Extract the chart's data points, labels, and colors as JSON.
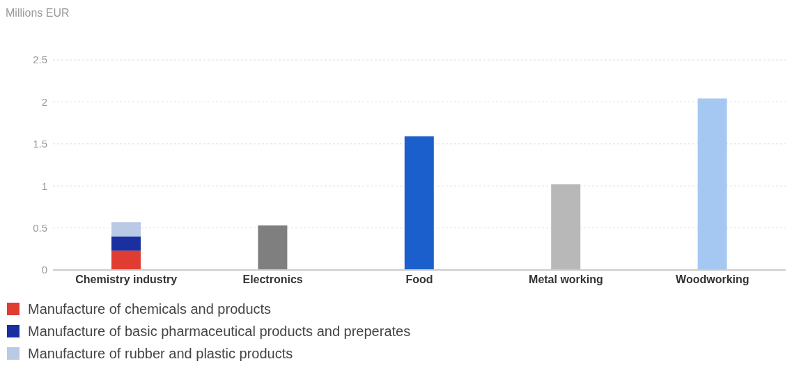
{
  "chart_data": {
    "type": "bar",
    "ylabel": "Millions EUR",
    "categories": [
      "Chemistry industry",
      "Electronics",
      "Food",
      "Metal working",
      "Woodworking"
    ],
    "stacked": true,
    "ylim": [
      0,
      2.5
    ],
    "yticks": [
      0,
      0.5,
      1,
      1.5,
      2,
      2.5
    ],
    "grid": "y",
    "legend": "bottom",
    "series": [
      {
        "name": "Manufacture of chemicals and products",
        "color": "#e03c31",
        "values": [
          0.23,
          null,
          null,
          null,
          null
        ]
      },
      {
        "name": "Manufacture of basic pharmaceutical products and preperates",
        "color": "#1a2fa0",
        "values": [
          0.17,
          null,
          null,
          null,
          null
        ]
      },
      {
        "name": "Manufacture of rubber and plastic products",
        "color": "#b9c9e6",
        "values": [
          0.17,
          null,
          null,
          null,
          null
        ]
      },
      {
        "color": "#7f7f7f",
        "values": [
          null,
          0.53,
          null,
          null,
          null
        ]
      },
      {
        "color": "#1a5fcc",
        "values": [
          null,
          null,
          1.59,
          null,
          null
        ]
      },
      {
        "color": "#b8b8b8",
        "values": [
          null,
          null,
          null,
          1.02,
          null
        ]
      },
      {
        "color": "#a5c8f2",
        "values": [
          null,
          null,
          null,
          null,
          2.04
        ]
      }
    ]
  }
}
